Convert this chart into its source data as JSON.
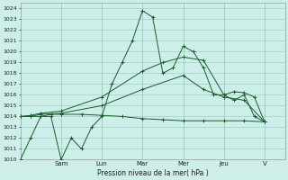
{
  "xlabel": "Pression niveau de la mer( hPa )",
  "ylim": [
    1010,
    1024.5
  ],
  "xlim": [
    0,
    13
  ],
  "background_color": "#cdeee9",
  "grid_color": "#a0cfc8",
  "line_color": "#1a5c2a",
  "day_labels": [
    "Sam",
    "Lun",
    "Mar",
    "Mer",
    "Jeu",
    "V"
  ],
  "day_positions": [
    2.0,
    4.0,
    6.0,
    8.0,
    10.0,
    12.0
  ],
  "series1_x": [
    0,
    0.5,
    1.0,
    1.5,
    2.0,
    2.5,
    3.0,
    3.5,
    4.0,
    4.5,
    5.0,
    5.5,
    6.0,
    6.5,
    7.0,
    7.5,
    8.0,
    8.5,
    9.0,
    9.5,
    10.0,
    10.5,
    11.0,
    11.5,
    12.0
  ],
  "series1_y": [
    1010,
    1012,
    1014,
    1014,
    1010,
    1012,
    1011,
    1013,
    1014,
    1017,
    1019,
    1021,
    1023.8,
    1023.2,
    1018,
    1018.5,
    1020.5,
    1020,
    1018.5,
    1016,
    1016,
    1015.5,
    1016,
    1014,
    1013.5
  ],
  "series2_x": [
    0,
    0.5,
    1.0,
    1.5,
    2.0,
    3.0,
    4.0,
    5.0,
    6.0,
    7.0,
    8.0,
    9.0,
    10.0,
    11.0,
    12.0
  ],
  "series2_y": [
    1014,
    1014,
    1014,
    1014.2,
    1014.2,
    1014.2,
    1014.1,
    1014.0,
    1013.8,
    1013.7,
    1013.6,
    1013.6,
    1013.6,
    1013.6,
    1013.5
  ],
  "series3_x": [
    0,
    0.5,
    1.0,
    2.0,
    4.0,
    6.0,
    8.0,
    9.0,
    10.0,
    11.0,
    12.0
  ],
  "series3_y": [
    1014,
    1014,
    1014.2,
    1014.3,
    1015.0,
    1016.5,
    1017.8,
    1016.5,
    1015.8,
    1015.5,
    1013.5
  ],
  "series4_x": [
    0,
    0.5,
    1.0,
    2.0,
    4.0,
    6.0,
    7.0,
    8.0,
    9.0,
    10.0,
    10.5,
    11.0,
    11.5,
    12.0
  ],
  "series4_y": [
    1014,
    1014.1,
    1014.3,
    1014.5,
    1015.8,
    1018.2,
    1019.0,
    1019.5,
    1019.2,
    1016.0,
    1016.3,
    1016.2,
    1015.8,
    1013.5
  ],
  "yticks": [
    1010,
    1011,
    1012,
    1013,
    1014,
    1015,
    1016,
    1017,
    1018,
    1019,
    1020,
    1021,
    1022,
    1023,
    1024
  ]
}
